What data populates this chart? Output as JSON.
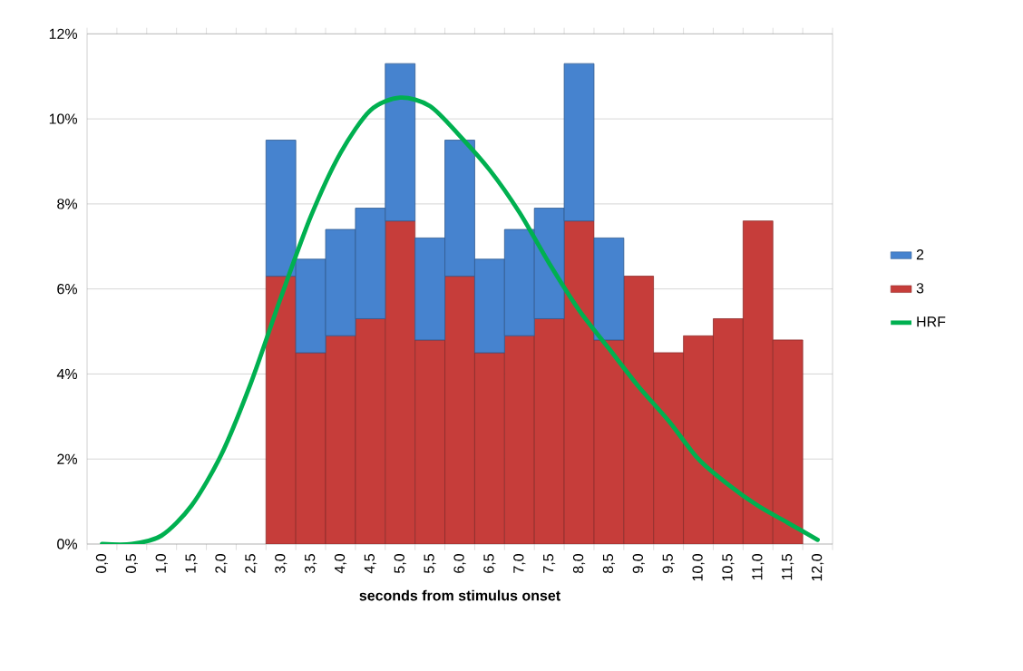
{
  "chart_data": {
    "type": "bar",
    "stacked": true,
    "xlabel": "seconds from stimulus onset",
    "categories": [
      "0,0",
      "0,5",
      "1,0",
      "1,5",
      "2,0",
      "2,5",
      "3,0",
      "3,5",
      "4,0",
      "4,5",
      "5,0",
      "5,5",
      "6,0",
      "6,5",
      "7,0",
      "7,5",
      "8,0",
      "8,5",
      "9,0",
      "9,5",
      "10,0",
      "10,5",
      "11,0",
      "11,5",
      "12,0"
    ],
    "series": [
      {
        "name": "3",
        "color": "#c63d3a",
        "values": [
          null,
          null,
          null,
          null,
          null,
          null,
          6.3,
          4.5,
          4.9,
          5.3,
          7.6,
          4.8,
          6.3,
          4.5,
          4.9,
          5.3,
          7.6,
          4.8,
          6.3,
          4.5,
          4.9,
          5.3,
          7.6,
          4.8,
          null
        ]
      },
      {
        "name": "2",
        "color": "#4683cf",
        "values": [
          null,
          null,
          null,
          null,
          null,
          null,
          3.2,
          2.2,
          2.5,
          2.6,
          3.7,
          2.4,
          3.2,
          2.2,
          2.5,
          2.6,
          3.7,
          2.4,
          null,
          null,
          null,
          null,
          null,
          null,
          null
        ]
      },
      {
        "name": "HRF",
        "type": "line",
        "color": "#00b050",
        "values": [
          0,
          0,
          0.2,
          0.9,
          2.1,
          3.8,
          5.8,
          7.7,
          9.2,
          10.2,
          10.5,
          10.3,
          9.6,
          8.8,
          7.8,
          6.6,
          5.5,
          4.6,
          3.7,
          2.9,
          2.0,
          1.4,
          0.9,
          0.5,
          0.1
        ]
      }
    ],
    "ylim": [
      0,
      12
    ],
    "yticks": [
      {
        "value": 0,
        "label": "0%"
      },
      {
        "value": 2,
        "label": "2%"
      },
      {
        "value": 4,
        "label": "4%"
      },
      {
        "value": 6,
        "label": "6%"
      },
      {
        "value": 8,
        "label": "8%"
      },
      {
        "value": 10,
        "label": "10%"
      },
      {
        "value": 12,
        "label": "12%"
      }
    ],
    "grid": "y",
    "legend": "right"
  }
}
